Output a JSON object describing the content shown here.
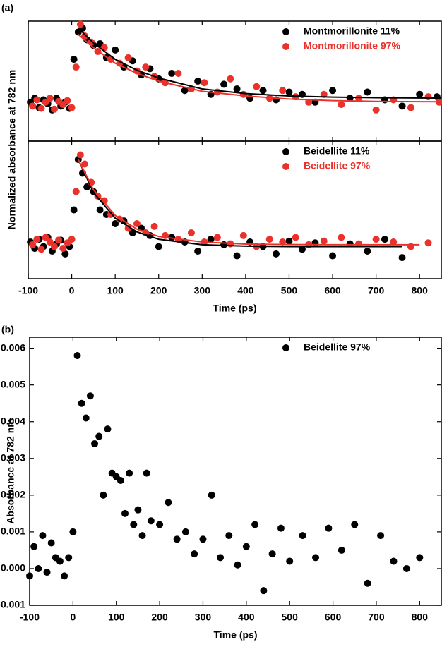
{
  "chart_data": [
    {
      "type": "scatter",
      "panel": "(a)",
      "ylabel": "Normalized absorbance at 782 nm",
      "xlim": [
        -100,
        850
      ],
      "ylim": [
        -0.45,
        1.09
      ],
      "legend": "upper right",
      "series": [
        {
          "name": "Montmorillonite 11%",
          "color": "#000000",
          "x": [
            -95,
            -85,
            -75,
            -65,
            -55,
            -45,
            -35,
            -25,
            -15,
            -5,
            5,
            15,
            25,
            35,
            50,
            65,
            80,
            100,
            120,
            140,
            160,
            180,
            200,
            230,
            260,
            290,
            320,
            350,
            380,
            410,
            440,
            470,
            500,
            530,
            560,
            600,
            640,
            680,
            720,
            760,
            800,
            840
          ],
          "values": [
            0.05,
            0.1,
            -0.02,
            0.08,
            0.03,
            -0.05,
            0.1,
            0,
            0.05,
            -0.03,
            0.6,
            0.95,
            1.0,
            0.85,
            0.78,
            0.8,
            0.62,
            0.72,
            0.5,
            0.58,
            0.4,
            0.48,
            0.35,
            0.42,
            0.2,
            0.32,
            0.15,
            0.28,
            0.22,
            0.1,
            0.2,
            0.08,
            0.18,
            0.15,
            0.05,
            0.2,
            0.1,
            0.18,
            0.08,
            0,
            0.15,
            0.12
          ]
        },
        {
          "name": "Montmorillonite 97%",
          "color": "#e8322b",
          "x": [
            -90,
            -80,
            -70,
            -60,
            -50,
            -40,
            -30,
            -20,
            -10,
            0,
            10,
            20,
            30,
            45,
            60,
            75,
            90,
            110,
            130,
            150,
            170,
            190,
            215,
            245,
            275,
            305,
            335,
            365,
            395,
            425,
            455,
            485,
            515,
            545,
            580,
            620,
            660,
            700,
            740,
            780,
            820,
            845
          ],
          "values": [
            0,
            0.08,
            -0.03,
            0.05,
            0.1,
            -0.04,
            0.06,
            0.02,
            0.07,
            -0.02,
            0.5,
            1.05,
            0.9,
            0.82,
            0.7,
            0.75,
            0.6,
            0.55,
            0.62,
            0.45,
            0.5,
            0.38,
            0.3,
            0.42,
            0.22,
            0.3,
            0.18,
            0.35,
            0.15,
            0.25,
            0.1,
            0.2,
            0.12,
            0.05,
            0.15,
            0.02,
            0.1,
            -0.05,
            0.08,
            -0.02,
            0.12,
            0.05
          ]
        }
      ],
      "fits": [
        {
          "color": "#000000",
          "x": [
            15,
            50,
            100,
            150,
            200,
            300,
            400,
            500,
            600,
            700,
            800,
            850
          ],
          "values": [
            1.0,
            0.81,
            0.6,
            0.46,
            0.36,
            0.22,
            0.16,
            0.13,
            0.115,
            0.107,
            0.104,
            0.103
          ]
        },
        {
          "color": "#e8322b",
          "x": [
            15,
            50,
            100,
            150,
            200,
            300,
            400,
            500,
            600,
            700,
            800,
            850
          ],
          "values": [
            0.92,
            0.75,
            0.55,
            0.42,
            0.32,
            0.19,
            0.13,
            0.09,
            0.07,
            0.06,
            0.056,
            0.055
          ]
        }
      ]
    },
    {
      "type": "scatter",
      "xlabel": "Time (ps)",
      "xlim": [
        -100,
        850
      ],
      "ylim": [
        -0.35,
        1.15
      ],
      "xticks": [
        -100,
        0,
        100,
        200,
        300,
        400,
        500,
        600,
        700,
        800
      ],
      "legend": "upper right",
      "series": [
        {
          "name": "Beidellite 11%",
          "color": "#000000",
          "x": [
            -95,
            -85,
            -75,
            -65,
            -55,
            -45,
            -35,
            -25,
            -15,
            -5,
            5,
            15,
            25,
            35,
            50,
            65,
            80,
            100,
            120,
            140,
            160,
            180,
            200,
            230,
            260,
            290,
            320,
            350,
            380,
            410,
            440,
            470,
            500,
            530,
            560,
            600,
            640,
            680,
            720,
            760
          ],
          "values": [
            0.05,
            -0.02,
            0.08,
            0.0,
            0.1,
            -0.05,
            0.03,
            0.07,
            -0.08,
            0.0,
            0.4,
            0.95,
            0.8,
            0.65,
            0.6,
            0.4,
            0.35,
            0.25,
            0.28,
            0.15,
            0.2,
            0.12,
            0.0,
            0.1,
            0.05,
            -0.05,
            0.08,
            0.02,
            -0.1,
            0.05,
            0.0,
            -0.08,
            0.06,
            -0.03,
            0.04,
            -0.1,
            0.03,
            -0.05,
            0.08,
            -0.12
          ]
        },
        {
          "name": "Beidellite 97%",
          "color": "#e8322b",
          "x": [
            -90,
            -80,
            -70,
            -60,
            -50,
            -40,
            -30,
            -20,
            -10,
            0,
            10,
            20,
            30,
            45,
            60,
            75,
            90,
            110,
            130,
            150,
            170,
            190,
            215,
            245,
            275,
            305,
            335,
            365,
            395,
            425,
            455,
            485,
            515,
            545,
            580,
            620,
            660,
            700,
            740,
            780,
            820
          ],
          "values": [
            0.02,
            0.08,
            -0.03,
            0.1,
            0.05,
            0,
            0.07,
            -0.02,
            0.04,
            0.08,
            0.6,
            1.0,
            0.9,
            0.7,
            0.55,
            0.5,
            0.35,
            0.3,
            0.2,
            0.25,
            0.15,
            0.22,
            0.12,
            0.08,
            0.15,
            0.05,
            0.1,
            0.03,
            0.12,
            0.0,
            0.08,
            0.05,
            0.1,
            0.02,
            0.06,
            0.1,
            0.03,
            0.08,
            0.05,
            0.0,
            0.04
          ]
        }
      ],
      "fits": [
        {
          "color": "#000000",
          "x": [
            15,
            50,
            100,
            150,
            200,
            300,
            400,
            500,
            600,
            700,
            760
          ],
          "values": [
            0.95,
            0.59,
            0.31,
            0.16,
            0.08,
            0.02,
            0.005,
            0.0,
            0.0,
            0.0,
            0.0
          ]
        },
        {
          "color": "#e8322b",
          "x": [
            15,
            50,
            100,
            150,
            200,
            300,
            400,
            500,
            600,
            700,
            800
          ],
          "values": [
            0.95,
            0.62,
            0.34,
            0.19,
            0.11,
            0.05,
            0.027,
            0.022,
            0.02,
            0.02,
            0.02
          ]
        }
      ]
    },
    {
      "type": "scatter",
      "panel": "(b)",
      "xlabel": "Time (ps)",
      "ylabel": "Absorbance at 782 nm",
      "xlim": [
        -100,
        850
      ],
      "ylim": [
        -0.001,
        0.0063
      ],
      "xticks": [
        -100,
        0,
        100,
        200,
        300,
        400,
        500,
        600,
        700,
        800
      ],
      "yticks": [
        {
          "value": -0.001,
          "label": "-0.001"
        },
        {
          "value": 0,
          "label": "0.000"
        },
        0.001,
        0.002,
        0.003,
        0.004,
        0.005,
        0.006
      ],
      "legend": "upper right",
      "series": [
        {
          "name": "Beidellite 97%",
          "color": "#000000",
          "x": [
            -100,
            -90,
            -80,
            -70,
            -60,
            -50,
            -40,
            -30,
            -20,
            -10,
            0,
            10,
            20,
            30,
            40,
            50,
            60,
            70,
            80,
            90,
            100,
            110,
            120,
            130,
            140,
            150,
            160,
            170,
            180,
            200,
            220,
            240,
            260,
            280,
            300,
            320,
            340,
            360,
            380,
            400,
            420,
            440,
            460,
            480,
            500,
            530,
            560,
            590,
            620,
            650,
            680,
            710,
            740,
            770,
            800
          ],
          "values": [
            -0.0002,
            0.0006,
            0.0,
            0.0009,
            -0.0001,
            0.0007,
            0.0003,
            0.0002,
            -0.0002,
            0.0003,
            0.001,
            0.0058,
            0.0045,
            0.0041,
            0.0047,
            0.0034,
            0.0036,
            0.002,
            0.0038,
            0.0026,
            0.0025,
            0.0024,
            0.0015,
            0.0026,
            0.0012,
            0.0016,
            0.0009,
            0.0026,
            0.0013,
            0.0012,
            0.0018,
            0.0008,
            0.001,
            0.0004,
            0.0008,
            0.002,
            0.0003,
            0.0009,
            0.0001,
            0.0006,
            0.0012,
            -0.0006,
            0.0004,
            0.0011,
            0.0002,
            0.0009,
            0.0003,
            0.0011,
            0.0005,
            0.0012,
            -0.0004,
            0.0009,
            0.0002,
            0.0,
            0.0003
          ]
        }
      ]
    }
  ]
}
